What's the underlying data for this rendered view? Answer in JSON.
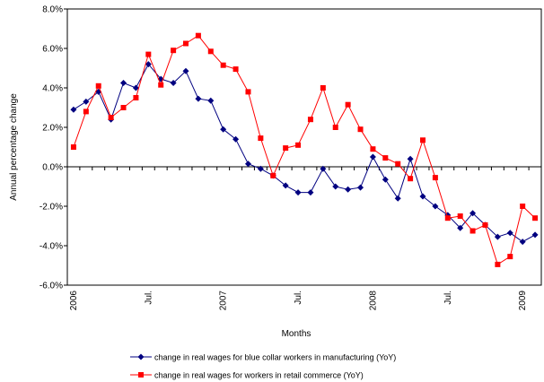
{
  "chart_data": {
    "type": "line",
    "y_axis_title": "Annual percentage change",
    "x_axis_title": "Months",
    "categories": [
      "2006",
      null,
      null,
      null,
      null,
      null,
      "Jul.",
      null,
      null,
      null,
      null,
      null,
      "2007",
      null,
      null,
      null,
      null,
      null,
      "Jul.",
      null,
      null,
      null,
      null,
      null,
      "2008",
      null,
      null,
      null,
      null,
      null,
      "Jul.",
      null,
      null,
      null,
      null,
      null,
      "2009",
      null
    ],
    "series": [
      {
        "name": "change in real wages for blue collar workers in manufacturing (YoY)",
        "color": "#000080",
        "marker": "diamond",
        "values": [
          2.9,
          3.3,
          3.8,
          2.4,
          4.25,
          4.0,
          5.2,
          4.45,
          4.25,
          4.85,
          3.45,
          3.35,
          1.9,
          1.4,
          0.15,
          -0.1,
          -0.45,
          -0.95,
          -1.3,
          -1.3,
          -0.1,
          -1.0,
          -1.15,
          -1.05,
          0.5,
          -0.65,
          -1.6,
          0.4,
          -1.5,
          -2.0,
          -2.45,
          -3.1,
          -2.35,
          -2.95,
          -3.55,
          -3.35,
          -3.8,
          -3.45
        ]
      },
      {
        "name": "change in real wages for workers in retail commerce (YoY)",
        "color": "#ff0000",
        "marker": "square",
        "values": [
          1.0,
          2.8,
          4.1,
          2.5,
          3.0,
          3.5,
          5.7,
          4.15,
          5.9,
          6.25,
          6.65,
          5.85,
          5.15,
          4.95,
          3.8,
          1.45,
          -0.45,
          0.95,
          1.1,
          2.4,
          4.0,
          2.0,
          3.15,
          1.9,
          0.9,
          0.45,
          0.15,
          -0.6,
          1.35,
          -0.55,
          -2.6,
          -2.5,
          -3.25,
          -2.95,
          -4.95,
          -4.55,
          -2.0,
          -2.6
        ]
      }
    ],
    "ylim": [
      -6,
      8
    ],
    "yticks": [
      {
        "value": -6,
        "label": "-6.0%"
      },
      {
        "value": -4,
        "label": "-4.0%"
      },
      {
        "value": -2,
        "label": "-2.0%"
      },
      {
        "value": 0,
        "label": "0.0%"
      },
      {
        "value": 2,
        "label": "2.0%"
      },
      {
        "value": 4,
        "label": "4.0%"
      },
      {
        "value": 6,
        "label": "6.0%"
      },
      {
        "value": 8,
        "label": "8.0%"
      }
    ],
    "legend": "bottom"
  }
}
